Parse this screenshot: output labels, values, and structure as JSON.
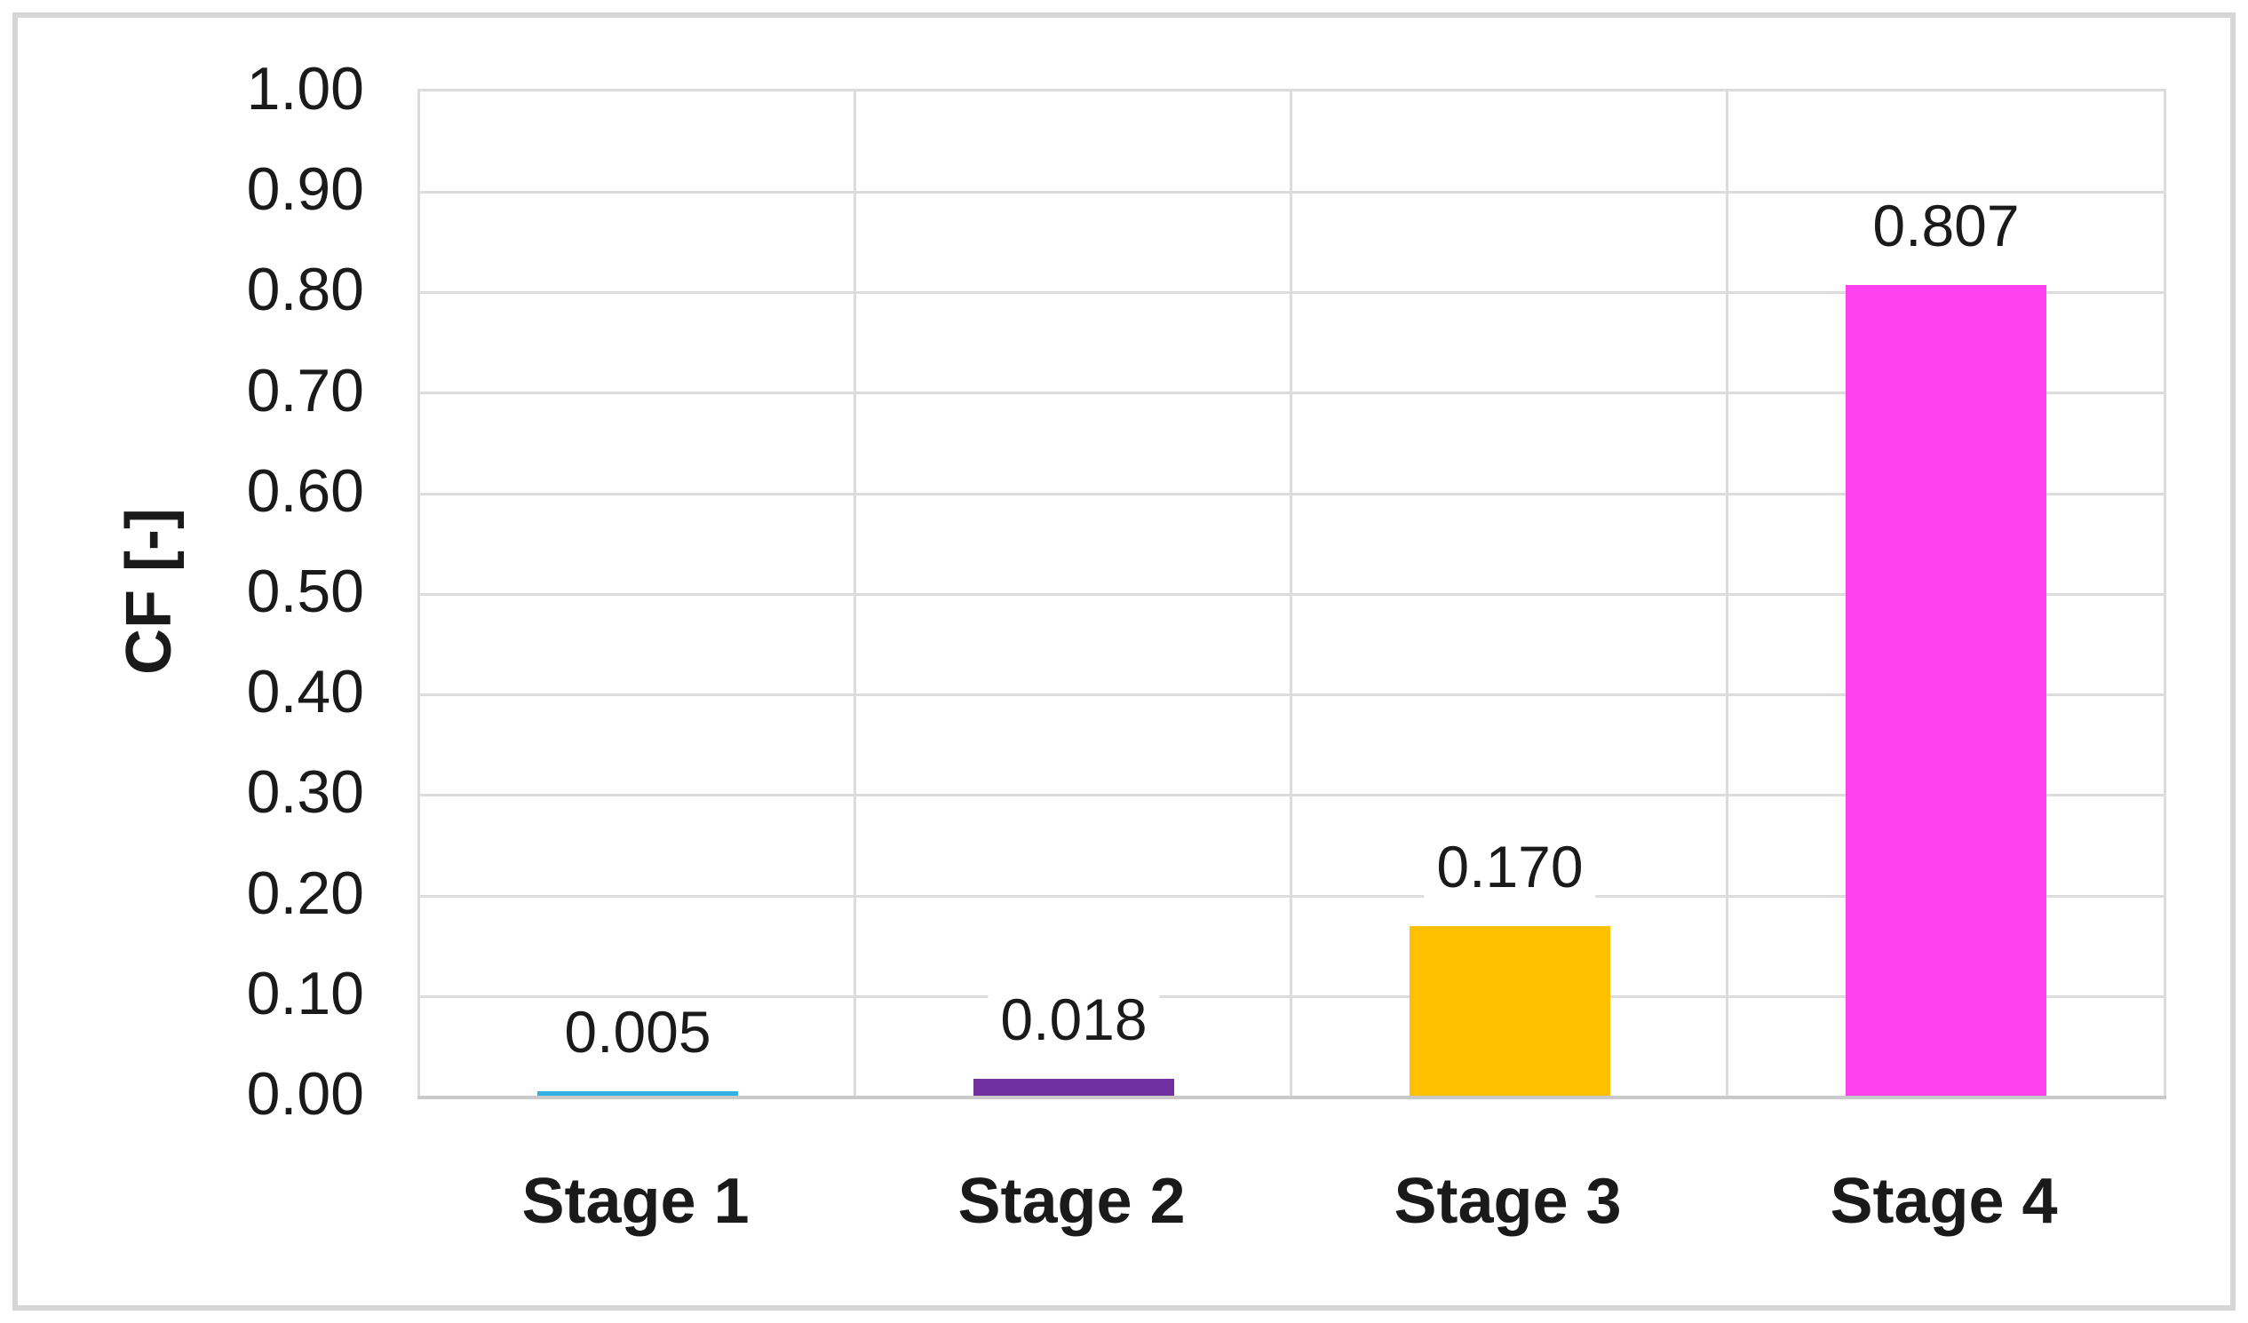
{
  "chart_data": {
    "type": "bar",
    "title": "",
    "xlabel": "",
    "ylabel": "CF [-]",
    "categories": [
      "Stage 1",
      "Stage 2",
      "Stage 3",
      "Stage 4"
    ],
    "values": [
      0.005,
      0.018,
      0.17,
      0.807
    ],
    "value_labels": [
      "0.005",
      "0.018",
      "0.170",
      "0.807"
    ],
    "bar_colors": [
      "#2eb1e6",
      "#7030a0",
      "#ffc000",
      "#ff40f0"
    ],
    "ylim": [
      0,
      1.0
    ],
    "ytick_step": 0.1,
    "ytick_labels": [
      "1.00",
      "0.90",
      "0.80",
      "0.70",
      "0.60",
      "0.50",
      "0.40",
      "0.30",
      "0.20",
      "0.10",
      "0.00"
    ],
    "grid": "on",
    "gridlines": "horizontal every 0.10 plus vertical category boundaries",
    "legend_position": "none",
    "data_label_position": "outside-end"
  },
  "colors": {
    "background": "#ffffff",
    "gridline": "#dcdcdc",
    "axis_line": "#c9c9c9",
    "frame_border": "#d6d6d6",
    "text": "#1a1a1a"
  }
}
